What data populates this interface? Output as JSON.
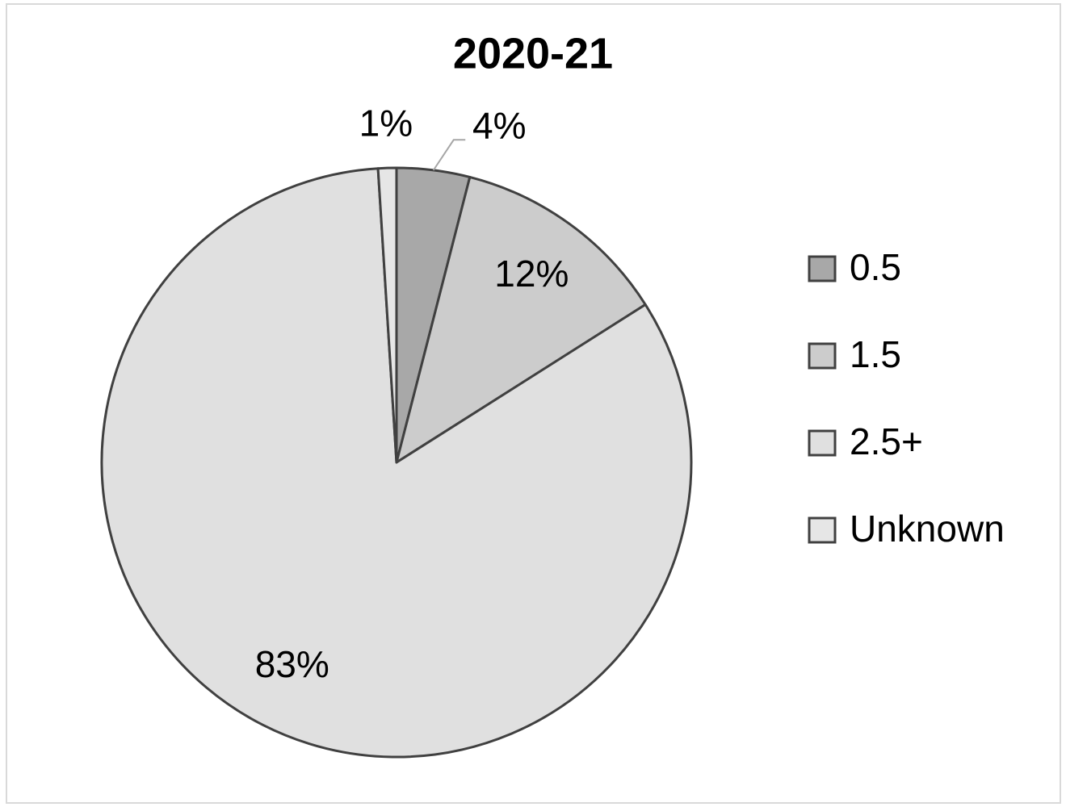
{
  "chart_data": {
    "type": "pie",
    "title": "2020-21",
    "categories": [
      "0.5",
      "1.5",
      "2.5+",
      "Unknown"
    ],
    "values": [
      4,
      12,
      83,
      1
    ],
    "value_labels": [
      "4%",
      "12%",
      "83%",
      "1%"
    ],
    "colors": [
      "#a8a8a8",
      "#cccccc",
      "#e0e0e0",
      "#e6e6e6"
    ],
    "legend": "right"
  }
}
